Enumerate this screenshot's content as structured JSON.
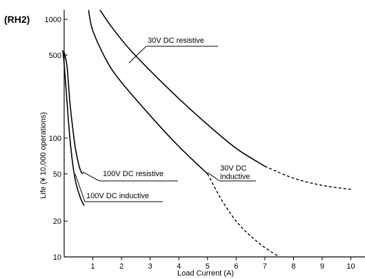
{
  "chart_data": {
    "type": "line",
    "panel_label": "(RH2)",
    "xlabel": "Load Current (A)",
    "ylabel": "Life (¥ 10,000 operations)",
    "xlim": [
      0,
      10.5
    ],
    "ylim": [
      10,
      1200
    ],
    "yscale": "log",
    "x_ticks": [
      1,
      2,
      3,
      4,
      5,
      6,
      7,
      8,
      9,
      10
    ],
    "y_ticks": [
      10,
      20,
      50,
      100,
      500,
      1000
    ],
    "grid": false,
    "series": [
      {
        "name": "30V DC resistive",
        "color": "#000000",
        "points": [
          [
            1.25,
            1200
          ],
          [
            1.6,
            900
          ],
          [
            2.2,
            590
          ],
          [
            3.0,
            370
          ],
          [
            4.0,
            215
          ],
          [
            5.0,
            130
          ],
          [
            6.0,
            82
          ],
          [
            7.0,
            58
          ]
        ],
        "dashed_points": [
          [
            7.0,
            58
          ],
          [
            8.0,
            46
          ],
          [
            9.0,
            40
          ],
          [
            10.0,
            37
          ]
        ]
      },
      {
        "name": "30V DC inductive",
        "color": "#000000",
        "points": [
          [
            0.85,
            1200
          ],
          [
            1.0,
            800
          ],
          [
            1.5,
            440
          ],
          [
            2.0,
            295
          ],
          [
            3.0,
            155
          ],
          [
            4.0,
            85
          ],
          [
            5.0,
            50
          ]
        ],
        "dashed_points": [
          [
            5.0,
            50
          ],
          [
            5.5,
            30
          ],
          [
            6.0,
            20
          ],
          [
            6.5,
            15
          ],
          [
            7.0,
            12
          ],
          [
            7.5,
            10
          ]
        ]
      },
      {
        "name": "100V DC resistive",
        "color": "#000000",
        "points": [
          [
            0.0,
            530
          ],
          [
            0.1,
            400
          ],
          [
            0.2,
            200
          ],
          [
            0.3,
            120
          ],
          [
            0.4,
            80
          ],
          [
            0.55,
            55
          ],
          [
            0.65,
            50
          ]
        ]
      },
      {
        "name": "100V DC inductive",
        "color": "#000000",
        "points": [
          [
            -0.05,
            550
          ],
          [
            0.0,
            420
          ],
          [
            0.1,
            200
          ],
          [
            0.2,
            100
          ],
          [
            0.3,
            60
          ],
          [
            0.4,
            43
          ],
          [
            0.5,
            35
          ],
          [
            0.6,
            30
          ],
          [
            0.7,
            27
          ]
        ]
      }
    ],
    "annotations": [
      {
        "lines": [
          "30V DC resistive"
        ]
      },
      {
        "lines": [
          "30V DC",
          "inductive"
        ]
      },
      {
        "lines": [
          "100V DC resistive"
        ]
      },
      {
        "lines": [
          "100V DC inductive"
        ]
      }
    ]
  }
}
